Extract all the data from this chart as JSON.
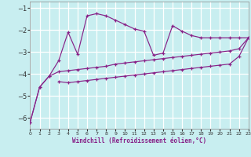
{
  "xlabel": "Windchill (Refroidissement éolien,°C)",
  "bg_color": "#c8eef0",
  "grid_color": "#ffffff",
  "line_color": "#882288",
  "xlim": [
    0,
    23
  ],
  "ylim": [
    -6.5,
    -0.7
  ],
  "yticks": [
    -6,
    -5,
    -4,
    -3,
    -2,
    -1
  ],
  "xticks": [
    0,
    1,
    2,
    3,
    4,
    5,
    6,
    7,
    8,
    9,
    10,
    11,
    12,
    13,
    14,
    15,
    16,
    17,
    18,
    19,
    20,
    21,
    22,
    23
  ],
  "s1_x": [
    0,
    1,
    2,
    3,
    4,
    5,
    6,
    7,
    8,
    9,
    10,
    11,
    12,
    13,
    14,
    15,
    16,
    17,
    18,
    19,
    20,
    21,
    22,
    23
  ],
  "s1_y": [
    -6.2,
    -4.6,
    -4.1,
    -3.4,
    -2.1,
    -3.1,
    -1.35,
    -1.25,
    -1.35,
    -1.55,
    -1.75,
    -1.95,
    -2.05,
    -3.15,
    -3.05,
    -1.8,
    -2.05,
    -2.25,
    -2.35,
    -2.35,
    -2.35,
    -2.35,
    -2.35,
    -2.35
  ],
  "s2_x": [
    0,
    1,
    2,
    3,
    4,
    5,
    6,
    7,
    8,
    9,
    10,
    11,
    12,
    13,
    14,
    15,
    16,
    17,
    18,
    19,
    20,
    21,
    22,
    23
  ],
  "s2_y": [
    -6.2,
    -4.6,
    -4.1,
    -3.9,
    -3.85,
    -3.8,
    -3.75,
    -3.7,
    -3.65,
    -3.55,
    -3.5,
    -3.45,
    -3.4,
    -3.35,
    -3.3,
    -3.25,
    -3.2,
    -3.15,
    -3.1,
    -3.05,
    -3.0,
    -2.95,
    -2.85,
    -2.35
  ],
  "s3_x": [
    3,
    4,
    5,
    6,
    7,
    8,
    9,
    10,
    11,
    12,
    13,
    14,
    15,
    16,
    17,
    18,
    19,
    20,
    21,
    22,
    23
  ],
  "s3_y": [
    -4.35,
    -4.4,
    -4.35,
    -4.3,
    -4.25,
    -4.2,
    -4.15,
    -4.1,
    -4.05,
    -4.0,
    -3.95,
    -3.9,
    -3.85,
    -3.8,
    -3.75,
    -3.7,
    -3.65,
    -3.6,
    -3.55,
    -3.2,
    -2.35
  ]
}
